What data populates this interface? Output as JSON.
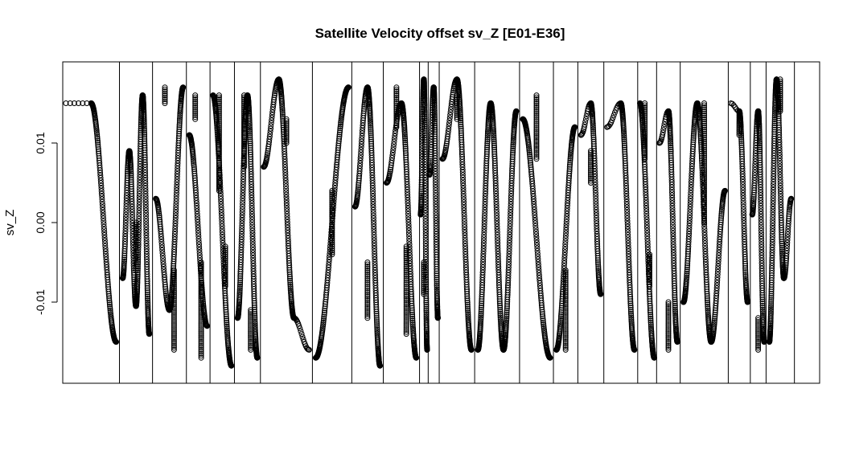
{
  "chart_data": {
    "type": "scatter",
    "title": "Satellite Velocity offset sv_Z [E01-E36]",
    "xlabel": "",
    "ylabel": "sv_Z",
    "ylim": [
      -0.0202,
      0.0202
    ],
    "yticks": [
      {
        "value": 0.01,
        "label": "0.01"
      },
      {
        "value": 0.0,
        "label": "0.00"
      },
      {
        "value": -0.01,
        "label": "-0.01"
      }
    ],
    "x_axis_shown": false,
    "marker": "open-circle",
    "point_color": "#000000",
    "grid": false,
    "legend": "none",
    "segment_count": 24,
    "segments": [
      {
        "kind": "wave",
        "start": 0.015,
        "end": -0.015,
        "extremes": [
          0.015,
          0.015,
          -0.015
        ],
        "jumps": []
      },
      {
        "kind": "wave",
        "start": -0.007,
        "end": 0.009,
        "extremes": [
          -0.007,
          0.009,
          -0.0105,
          0.016,
          -0.014
        ],
        "jumps": [
          [
            -0.006,
            0.0
          ]
        ]
      },
      {
        "kind": "wave",
        "start": 0.003,
        "end": 0.017,
        "extremes": [
          0.003,
          -0.011,
          0.017
        ],
        "jumps": [
          [
            0.015,
            0.017
          ],
          [
            -0.016,
            -0.006
          ]
        ]
      },
      {
        "kind": "wave",
        "start": 0.011,
        "end": -0.013,
        "extremes": [
          0.011,
          -0.013
        ],
        "jumps": [
          [
            0.016,
            0.013
          ],
          [
            -0.017,
            -0.005
          ]
        ]
      },
      {
        "kind": "wave",
        "start": 0.016,
        "end": -0.018,
        "extremes": [
          0.016,
          -0.018
        ],
        "jumps": [
          [
            0.016,
            0.004
          ],
          [
            -0.008,
            -0.003
          ]
        ]
      },
      {
        "kind": "wave",
        "start": -0.012,
        "end": -0.017,
        "extremes": [
          -0.012,
          0.016,
          -0.017
        ],
        "jumps": [
          [
            0.016,
            0.007
          ],
          [
            -0.016,
            -0.011
          ]
        ]
      },
      {
        "kind": "wave",
        "start": 0.007,
        "end": 0.01,
        "extremes": [
          0.007,
          0.018,
          -0.012,
          -0.016
        ],
        "jumps": [
          [
            0.013,
            0.01
          ]
        ]
      },
      {
        "kind": "wave",
        "start": -0.017,
        "end": 0.017,
        "extremes": [
          -0.017,
          0.017
        ],
        "jumps": [
          [
            0.004,
            -0.004
          ]
        ]
      },
      {
        "kind": "wave",
        "start": 0.002,
        "end": -0.01,
        "extremes": [
          0.002,
          0.017,
          -0.018
        ],
        "jumps": [
          [
            -0.012,
            -0.005
          ]
        ]
      },
      {
        "kind": "wave",
        "start": 0.005,
        "end": 0.017,
        "extremes": [
          0.005,
          0.015,
          -0.017
        ],
        "jumps": [
          [
            0.017,
            0.012
          ],
          [
            -0.014,
            -0.003
          ]
        ]
      },
      {
        "kind": "wave",
        "start": 0.001,
        "end": -0.016,
        "extremes": [
          0.001,
          0.018,
          -0.016
        ],
        "jumps": [
          [
            -0.009,
            -0.005
          ]
        ]
      },
      {
        "kind": "wave",
        "start": 0.006,
        "end": -0.012,
        "extremes": [
          0.006,
          0.017,
          -0.012
        ],
        "jumps": []
      },
      {
        "kind": "wave",
        "start": 0.008,
        "end": -0.016,
        "extremes": [
          0.008,
          0.018,
          -0.016
        ],
        "jumps": [
          [
            0.016,
            0.013
          ]
        ]
      },
      {
        "kind": "wave",
        "start": -0.016,
        "end": 0.014,
        "extremes": [
          -0.016,
          0.015,
          -0.016,
          0.014
        ],
        "jumps": []
      },
      {
        "kind": "wave",
        "start": 0.013,
        "end": -0.017,
        "extremes": [
          0.013,
          -0.017
        ],
        "jumps": [
          [
            0.016,
            0.008
          ]
        ]
      },
      {
        "kind": "wave",
        "start": -0.016,
        "end": 0.012,
        "extremes": [
          -0.016,
          0.012
        ],
        "jumps": [
          [
            -0.016,
            -0.006
          ]
        ]
      },
      {
        "kind": "wave",
        "start": 0.011,
        "end": -0.009,
        "extremes": [
          0.011,
          0.015,
          -0.009
        ],
        "jumps": [
          [
            0.009,
            0.005
          ]
        ]
      },
      {
        "kind": "wave",
        "start": 0.012,
        "end": -0.016,
        "extremes": [
          0.012,
          0.015,
          -0.016
        ],
        "jumps": []
      },
      {
        "kind": "wave",
        "start": 0.015,
        "end": -0.017,
        "extremes": [
          0.015,
          -0.017
        ],
        "jumps": [
          [
            0.015,
            0.008
          ],
          [
            -0.008,
            -0.004
          ]
        ]
      },
      {
        "kind": "wave",
        "start": 0.01,
        "end": -0.015,
        "extremes": [
          0.01,
          0.014,
          -0.015
        ],
        "jumps": [
          [
            -0.016,
            -0.01
          ]
        ]
      },
      {
        "kind": "wave",
        "start": -0.01,
        "end": 0.0,
        "extremes": [
          -0.01,
          0.015,
          -0.015,
          0.004
        ],
        "jumps": [
          [
            0.015,
            0.0
          ]
        ]
      },
      {
        "kind": "wave",
        "start": 0.015,
        "end": -0.01,
        "extremes": [
          0.015,
          0.014,
          -0.01
        ],
        "jumps": [
          [
            0.014,
            0.011
          ]
        ]
      },
      {
        "kind": "wave",
        "start": 0.001,
        "end": -0.015,
        "extremes": [
          0.001,
          0.014,
          -0.015
        ],
        "jumps": [
          [
            -0.016,
            -0.012
          ]
        ]
      },
      {
        "kind": "wave",
        "start": -0.015,
        "end": 0.003,
        "extremes": [
          -0.015,
          0.018,
          -0.007,
          0.003
        ],
        "jumps": [
          [
            0.018,
            0.014
          ]
        ]
      }
    ]
  }
}
